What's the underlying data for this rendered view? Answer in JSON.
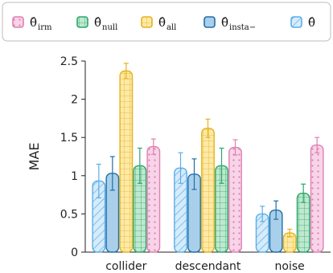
{
  "chart_data": {
    "type": "bar",
    "categories": [
      "collider",
      "descendant",
      "noise"
    ],
    "ylabel": "MAE",
    "ylim": [
      0,
      2.5
    ],
    "yticks": [
      0,
      0.5,
      1,
      1.5,
      2,
      2.5
    ],
    "ytick_labels": [
      "0",
      "0.5",
      "1",
      "1.5",
      "2",
      "2.5"
    ],
    "legend_position": "top",
    "series": [
      {
        "key": "cond",
        "name_main": "θ̂",
        "name_sub": "",
        "pattern": "hatch",
        "color": "#5aaee8",
        "fill": "#d6ebfb",
        "values": [
          0.93,
          1.1,
          0.5
        ],
        "errors": [
          0.22,
          0.2,
          0.1
        ]
      },
      {
        "key": "insta",
        "name_main": "θ̂",
        "name_sub": "insta−",
        "pattern": "solid",
        "color": "#1f6fa8",
        "fill": "#a9cfea",
        "values": [
          1.03,
          1.02,
          0.55
        ],
        "errors": [
          0.22,
          0.2,
          0.12
        ]
      },
      {
        "key": "all",
        "name_main": "θ̂",
        "name_sub": "all",
        "pattern": "grid",
        "color": "#e6b21a",
        "fill": "#fde9a8",
        "values": [
          2.37,
          1.62,
          0.25
        ],
        "errors": [
          0.1,
          0.12,
          0.05
        ]
      },
      {
        "key": "null",
        "name_main": "θ̂",
        "name_sub": "null",
        "pattern": "grid",
        "color": "#2aa66a",
        "fill": "#bfe8cf",
        "values": [
          1.13,
          1.13,
          0.77
        ],
        "errors": [
          0.23,
          0.23,
          0.12
        ]
      },
      {
        "key": "irm",
        "name_main": "θ̂",
        "name_sub": "irm",
        "pattern": "dots",
        "color": "#e07fb3",
        "fill": "#f7d4e7",
        "values": [
          1.38,
          1.37,
          1.4
        ],
        "errors": [
          0.1,
          0.1,
          0.1
        ]
      }
    ],
    "legend_order": [
      "irm",
      "null",
      "all",
      "insta",
      "cond"
    ]
  }
}
